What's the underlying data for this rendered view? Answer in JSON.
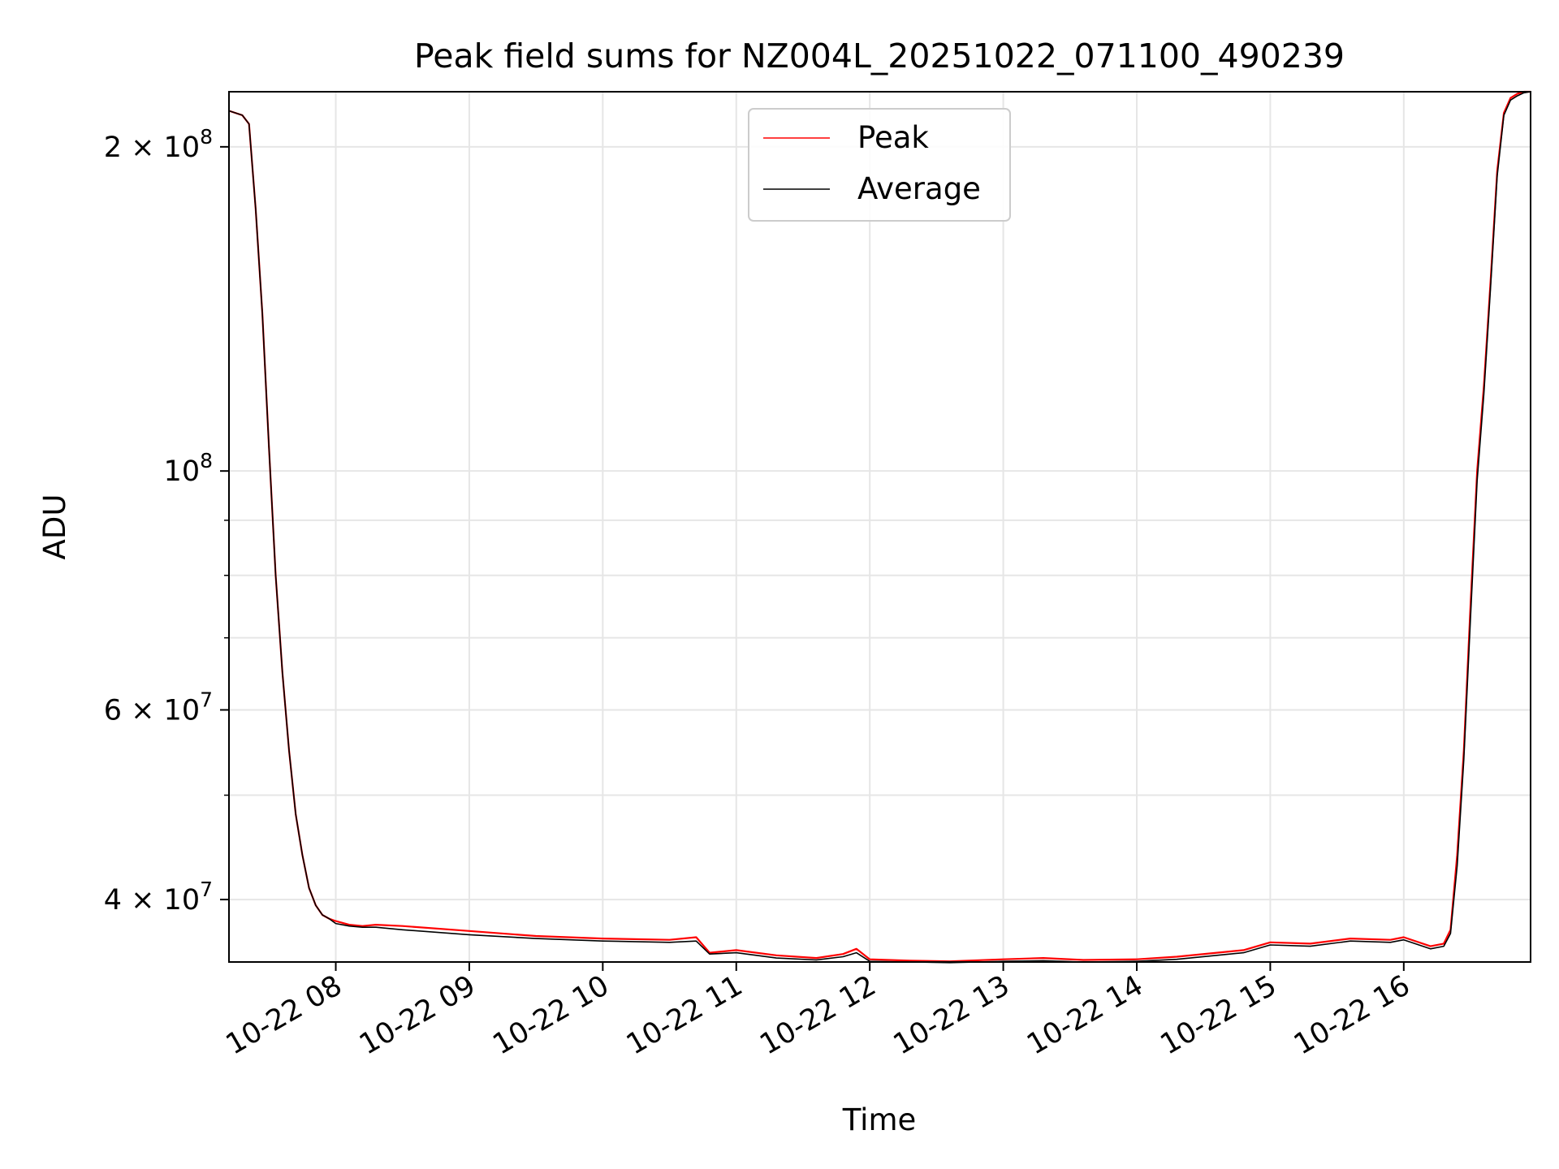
{
  "chart_data": {
    "type": "line",
    "title": "Peak field sums for NZ004L_20251022_071100_490239",
    "xlabel": "Time",
    "ylabel": "ADU",
    "yscale": "log",
    "xlim": [
      7.2,
      16.95
    ],
    "ylim": [
      35000000,
      225000000
    ],
    "grid": true,
    "legend_position": "top-center",
    "x_ticks": [
      {
        "value": 8,
        "label": "10-22 08"
      },
      {
        "value": 9,
        "label": "10-22 09"
      },
      {
        "value": 10,
        "label": "10-22 10"
      },
      {
        "value": 11,
        "label": "10-22 11"
      },
      {
        "value": 12,
        "label": "10-22 12"
      },
      {
        "value": 13,
        "label": "10-22 13"
      },
      {
        "value": 14,
        "label": "10-22 14"
      },
      {
        "value": 15,
        "label": "10-22 15"
      },
      {
        "value": 16,
        "label": "10-22 16"
      }
    ],
    "y_major_ticks": [
      {
        "value": 40000000,
        "base": "4 × 10",
        "exp": "7"
      },
      {
        "value": 60000000,
        "base": "6 × 10",
        "exp": "7"
      },
      {
        "value": 100000000,
        "base": "10",
        "exp": "8"
      },
      {
        "value": 200000000,
        "base": "2 × 10",
        "exp": "8"
      }
    ],
    "y_minor_ticks": [
      50000000,
      70000000,
      80000000,
      90000000
    ],
    "series": [
      {
        "name": "Peak",
        "color": "#ff0000",
        "x": [
          7.2,
          7.3,
          7.35,
          7.4,
          7.45,
          7.5,
          7.55,
          7.6,
          7.65,
          7.7,
          7.75,
          7.8,
          7.85,
          7.9,
          7.95,
          8.0,
          8.1,
          8.2,
          8.3,
          8.5,
          9.0,
          9.5,
          10.0,
          10.5,
          10.7,
          10.8,
          11.0,
          11.3,
          11.6,
          11.8,
          11.9,
          12.0,
          12.3,
          12.6,
          13.0,
          13.3,
          13.6,
          14.0,
          14.3,
          14.6,
          14.8,
          15.0,
          15.3,
          15.6,
          15.9,
          16.0,
          16.2,
          16.3,
          16.35,
          16.4,
          16.45,
          16.5,
          16.55,
          16.6,
          16.65,
          16.7,
          16.75,
          16.8,
          16.85,
          16.9,
          16.95
        ],
        "y": [
          216000000,
          214000000,
          210000000,
          175000000,
          140000000,
          105000000,
          80000000,
          65000000,
          55000000,
          48000000,
          44000000,
          41000000,
          39500000,
          38700000,
          38400000,
          38200000,
          37900000,
          37800000,
          37900000,
          37800000,
          37400000,
          37000000,
          36800000,
          36700000,
          36900000,
          35700000,
          35900000,
          35500000,
          35300000,
          35600000,
          36000000,
          35200000,
          35100000,
          35050000,
          35200000,
          35300000,
          35150000,
          35200000,
          35400000,
          35700000,
          35900000,
          36500000,
          36400000,
          36800000,
          36700000,
          36900000,
          36200000,
          36400000,
          37500000,
          44000000,
          55000000,
          75000000,
          100000000,
          120000000,
          150000000,
          190000000,
          215000000,
          222000000,
          224000000,
          225000000,
          225000000
        ]
      },
      {
        "name": "Average",
        "color": "#000000",
        "x": [
          7.2,
          7.3,
          7.35,
          7.4,
          7.45,
          7.5,
          7.55,
          7.6,
          7.65,
          7.7,
          7.75,
          7.8,
          7.85,
          7.9,
          7.95,
          8.0,
          8.1,
          8.2,
          8.3,
          8.5,
          9.0,
          9.5,
          10.0,
          10.5,
          10.7,
          10.8,
          11.0,
          11.3,
          11.6,
          11.8,
          11.9,
          12.0,
          12.3,
          12.6,
          13.0,
          13.3,
          13.6,
          14.0,
          14.3,
          14.6,
          14.8,
          15.0,
          15.3,
          15.6,
          15.9,
          16.0,
          16.2,
          16.3,
          16.35,
          16.4,
          16.45,
          16.5,
          16.55,
          16.6,
          16.65,
          16.7,
          16.75,
          16.8,
          16.85,
          16.9,
          16.95
        ],
        "y": [
          216000000,
          214000000,
          210000000,
          175000000,
          140000000,
          105000000,
          80000000,
          65000000,
          55000000,
          48000000,
          44000000,
          41000000,
          39500000,
          38700000,
          38400000,
          38000000,
          37800000,
          37700000,
          37700000,
          37500000,
          37100000,
          36800000,
          36600000,
          36500000,
          36600000,
          35600000,
          35700000,
          35300000,
          35150000,
          35400000,
          35700000,
          35050000,
          35000000,
          34950000,
          35050000,
          35100000,
          35000000,
          35050000,
          35200000,
          35500000,
          35700000,
          36300000,
          36200000,
          36600000,
          36500000,
          36700000,
          36000000,
          36200000,
          37200000,
          43000000,
          54000000,
          73000000,
          98000000,
          118000000,
          148000000,
          188000000,
          214000000,
          221000000,
          223000000,
          224500000,
          225000000
        ]
      }
    ]
  }
}
